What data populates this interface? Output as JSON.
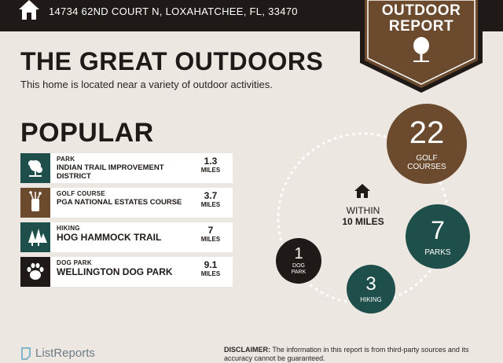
{
  "header": {
    "address": "14734 62ND COURT N, LOXAHATCHEE, FL, 33470",
    "badge_line1": "OUTDOOR",
    "badge_line2": "REPORT"
  },
  "intro": {
    "title": "THE GREAT OUTDOORS",
    "subtitle": "This home is located near a variety of outdoor activities."
  },
  "popular": {
    "heading": "POPULAR",
    "items": [
      {
        "category": "PARK",
        "name": "INDIAN TRAIL IMPROVEMENT DISTRICT",
        "distance": "1.3",
        "unit": "MILES",
        "icon": "park-icon",
        "color": "#1f4f4a"
      },
      {
        "category": "GOLF COURSE",
        "name": "PGA NATIONAL ESTATES COURSE",
        "distance": "3.7",
        "unit": "MILES",
        "icon": "golf-bag-icon",
        "color": "#6b4a2e"
      },
      {
        "category": "HIKING",
        "name": "HOG HAMMOCK TRAIL",
        "distance": "7",
        "unit": "MILES",
        "icon": "trees-icon",
        "color": "#1f4f4a"
      },
      {
        "category": "DOG PARK",
        "name": "WELLINGTON DOG PARK",
        "distance": "9.1",
        "unit": "MILES",
        "icon": "paw-icon",
        "color": "#1f1a17"
      }
    ]
  },
  "summary": {
    "within_label": "WITHIN",
    "within_distance": "10 MILES",
    "counts": [
      {
        "key": "golf",
        "number": "22",
        "label_line1": "GOLF",
        "label_line2": "COURSES",
        "color": "#6b4a2e"
      },
      {
        "key": "parks",
        "number": "7",
        "label_line1": "PARKS",
        "label_line2": "",
        "color": "#1f4f4a"
      },
      {
        "key": "hiking",
        "number": "3",
        "label_line1": "HIKING",
        "label_line2": "",
        "color": "#1f4f4a"
      },
      {
        "key": "dogpark",
        "number": "1",
        "label_line1": "DOG",
        "label_line2": "PARK",
        "color": "#1f1a17"
      }
    ]
  },
  "footer": {
    "brand": "ListReports",
    "disclaimer_label": "DISCLAIMER:",
    "disclaimer_text": "The information in this report is from third-party sources and its accuracy cannot be guaranteed."
  },
  "colors": {
    "dark": "#1f1a17",
    "brown": "#6b4a2e",
    "teal": "#1f4f4a",
    "background": "#ece7e1"
  }
}
